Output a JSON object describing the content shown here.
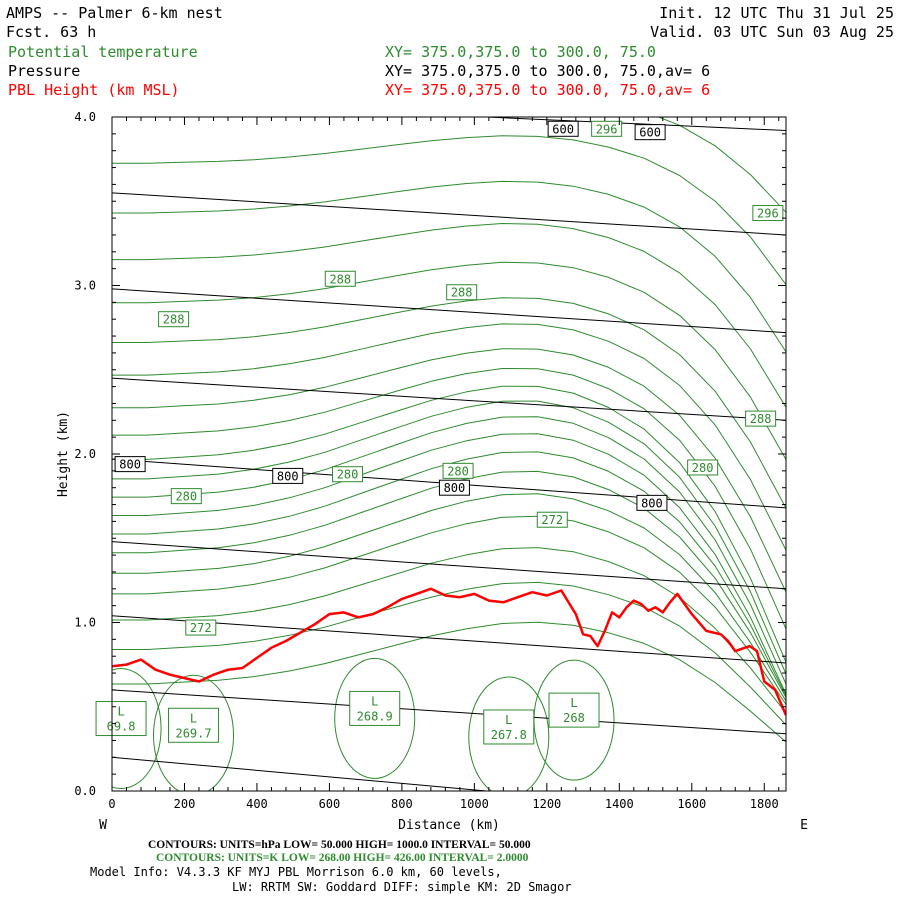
{
  "header": {
    "title": "AMPS -- Palmer 6-km nest",
    "forecast": "Fcst.   63 h",
    "init": "Init. 12 UTC Thu 31 Jul 25",
    "valid": "Valid. 03 UTC Sun 03 Aug 25",
    "lines": [
      {
        "label": "Potential temperature",
        "xy": "XY= 375.0,375.0 to 300.0, 75.0",
        "color": "#2e8b2e"
      },
      {
        "label": "Pressure",
        "xy": "XY= 375.0,375.0 to 300.0, 75.0,av=  6",
        "color": "#000000"
      },
      {
        "label": "PBL Height (km MSL)",
        "xy": "XY= 375.0,375.0 to 300.0, 75.0,av=  6",
        "color": "#ff0000"
      }
    ]
  },
  "chart_data": {
    "type": "line",
    "xlabel": "Distance (km)",
    "ylabel": "Height (km)",
    "xlim": [
      0,
      1860
    ],
    "ylim": [
      0,
      4
    ],
    "xticks": [
      "0",
      "200",
      "400",
      "600",
      "800",
      "1000",
      "1200",
      "1400",
      "1600",
      "1800"
    ],
    "yticks": [
      "0.0",
      "1.0",
      "2.0",
      "3.0",
      "4.0"
    ],
    "left_end": "W",
    "right_end": "E",
    "pressure_levels": [
      {
        "y0": 0.2,
        "y1": -0.16
      },
      {
        "y0": 0.6,
        "y1": 0.34
      },
      {
        "y0": 1.04,
        "y1": 0.76
      },
      {
        "y0": 1.48,
        "y1": 1.2
      },
      {
        "y0": 1.97,
        "y1": 1.68
      },
      {
        "y0": 2.45,
        "y1": 2.2
      },
      {
        "y0": 2.98,
        "y1": 2.72
      },
      {
        "y0": 3.55,
        "y1": 3.3
      },
      {
        "y0": 4.1,
        "y1": 3.92
      }
    ],
    "pressure_labels": [
      {
        "text": "800",
        "x": 50,
        "y": 1.94
      },
      {
        "text": "800",
        "x": 485,
        "y": 1.87
      },
      {
        "text": "800",
        "x": 945,
        "y": 1.8
      },
      {
        "text": "800",
        "x": 1490,
        "y": 1.71
      },
      {
        "text": "600",
        "x": 1245,
        "y": 3.93
      },
      {
        "text": "600",
        "x": 1485,
        "y": 3.91
      }
    ],
    "theta_base": [
      0.1,
      0.1,
      0.12,
      0.14,
      0.18,
      0.24,
      0.32,
      0.42,
      0.52,
      0.62,
      0.7,
      0.76,
      0.78,
      0.76,
      0.7,
      0.62,
      0.5,
      0.34,
      0.16,
      0.02
    ],
    "theta_contours": [
      {
        "offset": 0.58,
        "amp": 0.55,
        "drop": 0.3
      },
      {
        "offset": 0.78,
        "amp": 0.6,
        "drop": 0.4
      },
      {
        "offset": 0.95,
        "amp": 0.65,
        "drop": 0.5
      },
      {
        "offset": 1.1,
        "amp": 0.7,
        "drop": 0.6
      },
      {
        "offset": 1.22,
        "amp": 0.72,
        "drop": 0.7
      },
      {
        "offset": 1.34,
        "amp": 0.74,
        "drop": 0.8
      },
      {
        "offset": 1.45,
        "amp": 0.75,
        "drop": 0.9
      },
      {
        "offset": 1.56,
        "amp": 0.75,
        "drop": 1.0
      },
      {
        "offset": 1.67,
        "amp": 0.74,
        "drop": 1.05
      },
      {
        "offset": 1.78,
        "amp": 0.72,
        "drop": 1.1
      },
      {
        "offset": 1.9,
        "amp": 0.68,
        "drop": 1.15
      },
      {
        "offset": 2.05,
        "amp": 0.62,
        "drop": 1.1
      },
      {
        "offset": 2.22,
        "amp": 0.55,
        "drop": 1.05
      },
      {
        "offset": 2.42,
        "amp": 0.48,
        "drop": 1.0
      },
      {
        "offset": 2.62,
        "amp": 0.42,
        "drop": 0.95
      },
      {
        "offset": 2.86,
        "amp": 0.38,
        "drop": 0.9
      },
      {
        "offset": 3.12,
        "amp": 0.34,
        "drop": 0.85
      },
      {
        "offset": 3.4,
        "amp": 0.3,
        "drop": 0.8
      },
      {
        "offset": 3.7,
        "amp": 0.26,
        "drop": 0.7
      },
      {
        "offset": 3.98,
        "amp": 0.22,
        "drop": 0.55
      }
    ],
    "theta_labels": [
      {
        "text": "272",
        "x": 245,
        "y": 0.97
      },
      {
        "text": "272",
        "x": 1215,
        "y": 1.61
      },
      {
        "text": "280",
        "x": 205,
        "y": 1.75
      },
      {
        "text": "280",
        "x": 650,
        "y": 1.88
      },
      {
        "text": "280",
        "x": 955,
        "y": 1.9
      },
      {
        "text": "280",
        "x": 1630,
        "y": 1.92
      },
      {
        "text": "288",
        "x": 170,
        "y": 2.8
      },
      {
        "text": "288",
        "x": 630,
        "y": 3.04
      },
      {
        "text": "288",
        "x": 965,
        "y": 2.96
      },
      {
        "text": "288",
        "x": 1790,
        "y": 2.21
      },
      {
        "text": "296",
        "x": 1365,
        "y": 3.93
      },
      {
        "text": "296",
        "x": 1810,
        "y": 3.43
      }
    ],
    "lows": [
      {
        "text": "L",
        "value": "69.8",
        "x": 25,
        "y": 0.43
      },
      {
        "text": "L",
        "value": "269.7",
        "x": 225,
        "y": 0.39
      },
      {
        "text": "L",
        "value": "268.9",
        "x": 725,
        "y": 0.49
      },
      {
        "text": "L",
        "value": "267.8",
        "x": 1095,
        "y": 0.38
      },
      {
        "text": "L",
        "value": "268",
        "x": 1275,
        "y": 0.48
      }
    ],
    "pbl": {
      "name": "PBL Height (km MSL)",
      "x": [
        0,
        40,
        80,
        120,
        160,
        200,
        240,
        280,
        320,
        360,
        400,
        440,
        480,
        520,
        560,
        600,
        640,
        680,
        720,
        760,
        800,
        840,
        880,
        920,
        960,
        1000,
        1040,
        1080,
        1120,
        1160,
        1200,
        1240,
        1280,
        1300,
        1320,
        1340,
        1360,
        1380,
        1400,
        1420,
        1440,
        1460,
        1480,
        1500,
        1520,
        1540,
        1560,
        1600,
        1640,
        1680,
        1700,
        1720,
        1760,
        1780,
        1800,
        1830,
        1860
      ],
      "y": [
        0.74,
        0.75,
        0.78,
        0.72,
        0.69,
        0.67,
        0.65,
        0.69,
        0.72,
        0.73,
        0.79,
        0.85,
        0.89,
        0.94,
        0.99,
        1.05,
        1.06,
        1.03,
        1.05,
        1.09,
        1.14,
        1.17,
        1.2,
        1.16,
        1.15,
        1.17,
        1.13,
        1.12,
        1.15,
        1.18,
        1.16,
        1.19,
        1.05,
        0.93,
        0.92,
        0.86,
        0.95,
        1.06,
        1.03,
        1.09,
        1.13,
        1.11,
        1.07,
        1.09,
        1.06,
        1.12,
        1.17,
        1.05,
        0.95,
        0.93,
        0.89,
        0.83,
        0.86,
        0.83,
        0.65,
        0.6,
        0.45
      ],
      "color": "#ff0000"
    }
  },
  "footer": {
    "line1": "CONTOURS:  UNITS=hPa  LOW=  50.000       HIGH=  1000.0        INTERVAL=   50.000",
    "line2": "CONTOURS:  UNITS=K  LOW=  268.00       HIGH=  426.00         INTERVAL=   2.0000",
    "line3": "Model Info: V4.3.3    KF     MYJ PBL  Morrison           6.0 km,  60 levels,",
    "line4": "LW: RRTM SW: Goddard DIFF: simple KM: 2D Smagor"
  },
  "colors": {
    "theta": "#2e8b2e",
    "pressure": "#000000",
    "pbl": "#ff0000"
  }
}
